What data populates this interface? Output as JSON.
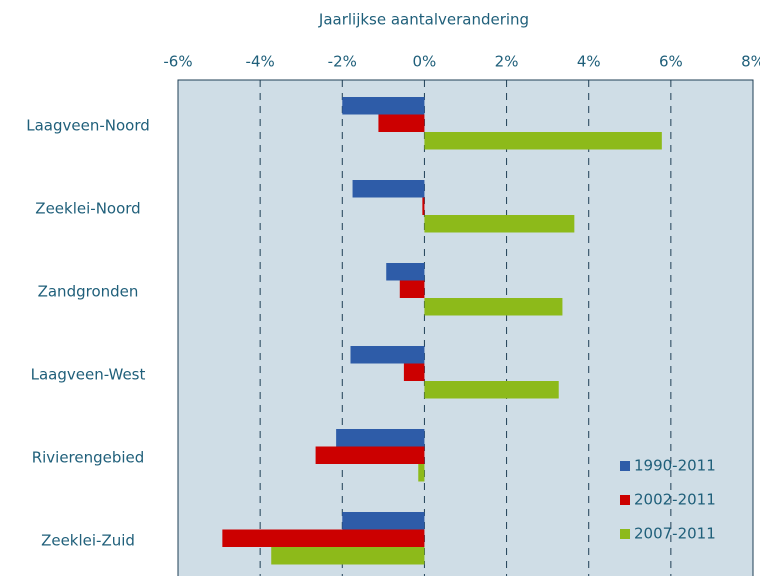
{
  "chart_data": {
    "type": "hbar",
    "title": "Jaarlijkse aantalverandering",
    "categories": [
      "Laagveen-Noord",
      "Zeeklei-Noord",
      "Zandgronden",
      "Laagveen-West",
      "Rivierengebied",
      "Zeeklei-Zuid"
    ],
    "series": [
      {
        "name": "1990-2011",
        "color": "#2e5ca8",
        "values": [
          -2.0,
          -1.75,
          -0.93,
          -1.8,
          -2.15,
          -2.0
        ]
      },
      {
        "name": "2002-2011",
        "color": "#cc0000",
        "values": [
          -1.12,
          -0.05,
          -0.6,
          -0.5,
          -2.65,
          -4.92
        ]
      },
      {
        "name": "2007-2011",
        "color": "#8dba1a",
        "values": [
          5.78,
          3.65,
          3.36,
          3.27,
          -0.15,
          -3.73
        ]
      }
    ],
    "xlim": [
      -6,
      8
    ],
    "xticks": [
      {
        "value": -6,
        "label": "-6%"
      },
      {
        "value": -4,
        "label": "-4%"
      },
      {
        "value": -2,
        "label": "-2%"
      },
      {
        "value": 0,
        "label": "0%"
      },
      {
        "value": 2,
        "label": "2%"
      },
      {
        "value": 4,
        "label": "4%"
      },
      {
        "value": 6,
        "label": "6%"
      },
      {
        "value": 8,
        "label": "8%"
      }
    ],
    "grid": true,
    "legend": "lower right"
  }
}
